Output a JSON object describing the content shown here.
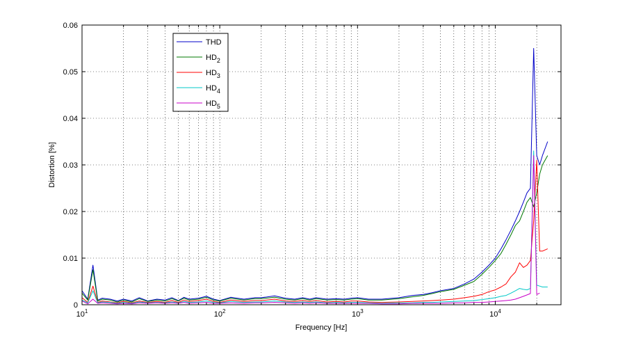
{
  "chart_data": {
    "type": "line",
    "xlabel": "Frequency [Hz]",
    "ylabel": "Distortion [%]",
    "xscale": "log",
    "xlim": [
      10,
      30000
    ],
    "ylim": [
      0,
      0.06
    ],
    "yticks": [
      "0",
      "0.01",
      "0.02",
      "0.03",
      "0.04",
      "0.05",
      "0.06"
    ],
    "xticks": [
      {
        "base": "10",
        "exp": "1"
      },
      {
        "base": "10",
        "exp": "2"
      },
      {
        "base": "10",
        "exp": "3"
      },
      {
        "base": "10",
        "exp": "4"
      }
    ],
    "grid": true,
    "legend_position": "top-left",
    "series": [
      {
        "name": "THD",
        "label_main": "THD",
        "label_sub": "",
        "color": "#0000c8",
        "x": [
          10,
          11,
          12,
          13,
          14,
          16,
          18,
          20,
          23,
          26,
          30,
          35,
          40,
          45,
          50,
          55,
          60,
          70,
          80,
          90,
          100,
          120,
          150,
          180,
          200,
          250,
          300,
          350,
          400,
          450,
          500,
          600,
          700,
          800,
          900,
          1000,
          1200,
          1500,
          2000,
          2500,
          3000,
          3500,
          4000,
          5000,
          6000,
          7000,
          8000,
          9000,
          10000,
          11000,
          12000,
          13000,
          14000,
          15000,
          16000,
          17000,
          18000,
          19000,
          20000,
          21000,
          22000,
          24000
        ],
        "y": [
          0.003,
          0.0012,
          0.0085,
          0.001,
          0.0014,
          0.0012,
          0.0008,
          0.0012,
          0.0008,
          0.0015,
          0.0008,
          0.0012,
          0.001,
          0.0015,
          0.0009,
          0.0016,
          0.0012,
          0.0014,
          0.0018,
          0.0012,
          0.0009,
          0.0016,
          0.0012,
          0.0015,
          0.0015,
          0.0019,
          0.0014,
          0.0012,
          0.0015,
          0.0012,
          0.0015,
          0.0012,
          0.0013,
          0.0012,
          0.0014,
          0.0015,
          0.0012,
          0.0012,
          0.0015,
          0.002,
          0.0022,
          0.0026,
          0.003,
          0.0035,
          0.0045,
          0.0055,
          0.007,
          0.0085,
          0.01,
          0.012,
          0.014,
          0.016,
          0.018,
          0.02,
          0.022,
          0.024,
          0.025,
          0.055,
          0.032,
          0.03,
          0.032,
          0.035
        ]
      },
      {
        "name": "HD2",
        "label_main": "HD",
        "label_sub": "2",
        "color": "#007800",
        "x": [
          10,
          11,
          12,
          13,
          14,
          16,
          18,
          20,
          23,
          26,
          30,
          35,
          40,
          45,
          50,
          55,
          60,
          70,
          80,
          90,
          100,
          120,
          150,
          180,
          200,
          250,
          300,
          350,
          400,
          450,
          500,
          600,
          700,
          800,
          900,
          1000,
          1200,
          1500,
          2000,
          2500,
          3000,
          3500,
          4000,
          5000,
          6000,
          7000,
          8000,
          9000,
          10000,
          11000,
          12000,
          13000,
          14000,
          15000,
          16000,
          17000,
          18000,
          19000,
          20000,
          21000,
          22000,
          24000
        ],
        "y": [
          0.0025,
          0.001,
          0.0075,
          0.0008,
          0.0012,
          0.001,
          0.0006,
          0.001,
          0.0006,
          0.0013,
          0.0007,
          0.001,
          0.0008,
          0.0013,
          0.0008,
          0.0014,
          0.001,
          0.0012,
          0.0016,
          0.001,
          0.0008,
          0.0014,
          0.001,
          0.0013,
          0.0013,
          0.0016,
          0.0012,
          0.001,
          0.0013,
          0.001,
          0.0013,
          0.001,
          0.0011,
          0.001,
          0.0012,
          0.0013,
          0.001,
          0.001,
          0.0013,
          0.0017,
          0.002,
          0.0024,
          0.0028,
          0.0033,
          0.0042,
          0.005,
          0.0065,
          0.008,
          0.0095,
          0.011,
          0.013,
          0.015,
          0.017,
          0.018,
          0.02,
          0.022,
          0.023,
          0.021,
          0.024,
          0.028,
          0.03,
          0.032
        ]
      },
      {
        "name": "HD3",
        "label_main": "HD",
        "label_sub": "3",
        "color": "#ff0000",
        "x": [
          10,
          11,
          12,
          13,
          14,
          16,
          18,
          20,
          23,
          26,
          30,
          35,
          40,
          45,
          50,
          55,
          60,
          70,
          80,
          90,
          100,
          120,
          150,
          180,
          200,
          250,
          300,
          350,
          400,
          450,
          500,
          600,
          700,
          800,
          900,
          1000,
          1200,
          1500,
          2000,
          2500,
          3000,
          3500,
          4000,
          5000,
          6000,
          7000,
          8000,
          9000,
          10000,
          11000,
          12000,
          13000,
          14000,
          15000,
          16000,
          17000,
          18000,
          19000,
          20000,
          21000,
          22000,
          24000
        ],
        "y": [
          0.0015,
          0.0005,
          0.004,
          0.0005,
          0.0008,
          0.0006,
          0.0004,
          0.0007,
          0.0004,
          0.0008,
          0.0005,
          0.0007,
          0.0005,
          0.0009,
          0.0005,
          0.001,
          0.0007,
          0.0009,
          0.0012,
          0.0007,
          0.0005,
          0.001,
          0.0007,
          0.0009,
          0.0009,
          0.0012,
          0.0008,
          0.0007,
          0.0009,
          0.0007,
          0.0009,
          0.0006,
          0.0007,
          0.0006,
          0.0008,
          0.0008,
          0.0006,
          0.0005,
          0.0006,
          0.0007,
          0.0008,
          0.0009,
          0.001,
          0.0012,
          0.0015,
          0.0018,
          0.0022,
          0.0028,
          0.0032,
          0.0038,
          0.0045,
          0.006,
          0.007,
          0.009,
          0.008,
          0.0085,
          0.0095,
          0.018,
          0.031,
          0.0115,
          0.0115,
          0.012
        ]
      },
      {
        "name": "HD4",
        "label_main": "HD",
        "label_sub": "4",
        "color": "#00c8c8",
        "x": [
          10,
          11,
          12,
          13,
          14,
          16,
          18,
          20,
          23,
          26,
          30,
          35,
          40,
          45,
          50,
          55,
          60,
          70,
          80,
          90,
          100,
          120,
          150,
          180,
          200,
          250,
          300,
          350,
          400,
          450,
          500,
          600,
          700,
          800,
          900,
          1000,
          1200,
          1500,
          2000,
          2500,
          3000,
          3500,
          4000,
          5000,
          6000,
          7000,
          8000,
          9000,
          10000,
          11000,
          12000,
          13000,
          14000,
          15000,
          16000,
          17000,
          18000,
          19000,
          20000,
          21000,
          22000,
          24000
        ],
        "y": [
          0.001,
          0.0004,
          0.003,
          0.0004,
          0.0006,
          0.0005,
          0.0003,
          0.0005,
          0.0003,
          0.0006,
          0.0004,
          0.0005,
          0.0004,
          0.0006,
          0.0004,
          0.0007,
          0.0005,
          0.0006,
          0.0008,
          0.0005,
          0.0004,
          0.0007,
          0.0005,
          0.0006,
          0.0006,
          0.0008,
          0.0006,
          0.0005,
          0.0006,
          0.0005,
          0.0006,
          0.0004,
          0.0005,
          0.0004,
          0.0005,
          0.0005,
          0.0004,
          0.0003,
          0.0004,
          0.0004,
          0.0005,
          0.0005,
          0.0006,
          0.0007,
          0.0008,
          0.0009,
          0.0011,
          0.0013,
          0.0015,
          0.0018,
          0.002,
          0.0025,
          0.003,
          0.0035,
          0.0033,
          0.0032,
          0.0035,
          0.033,
          0.0042,
          0.004,
          0.0038,
          0.0038
        ]
      },
      {
        "name": "HD5",
        "label_main": "HD",
        "label_sub": "5",
        "color": "#c800c8",
        "x": [
          10,
          11,
          12,
          13,
          14,
          16,
          18,
          20,
          23,
          26,
          30,
          35,
          40,
          45,
          50,
          55,
          60,
          70,
          80,
          90,
          100,
          120,
          150,
          180,
          200,
          250,
          300,
          350,
          400,
          450,
          500,
          600,
          700,
          800,
          900,
          1000,
          1200,
          1500,
          2000,
          2500,
          3000,
          3500,
          4000,
          5000,
          6000,
          7000,
          8000,
          9000,
          10000,
          11000,
          12000,
          13000,
          14000,
          15000,
          16000,
          17000,
          18000,
          19000,
          20000,
          21000
        ],
        "y": [
          0.0008,
          0.0002,
          0.0012,
          0.0003,
          0.0004,
          0.0003,
          0.0002,
          0.0003,
          0.0002,
          0.0004,
          0.0003,
          0.0004,
          0.0003,
          0.0004,
          0.0003,
          0.0005,
          0.0003,
          0.0004,
          0.0005,
          0.0003,
          0.0003,
          0.0004,
          0.0003,
          0.0004,
          0.0004,
          0.0005,
          0.0004,
          0.0003,
          0.0004,
          0.0003,
          0.0004,
          0.0003,
          0.0003,
          0.0003,
          0.0003,
          0.0003,
          0.0003,
          0.0002,
          0.0002,
          0.0003,
          0.0003,
          0.0003,
          0.0003,
          0.0004,
          0.0004,
          0.0005,
          0.0005,
          0.0006,
          0.0007,
          0.0008,
          0.0009,
          0.001,
          0.0012,
          0.0015,
          0.0018,
          0.0021,
          0.0024,
          0.032,
          0.0022,
          0.0025
        ]
      }
    ]
  }
}
